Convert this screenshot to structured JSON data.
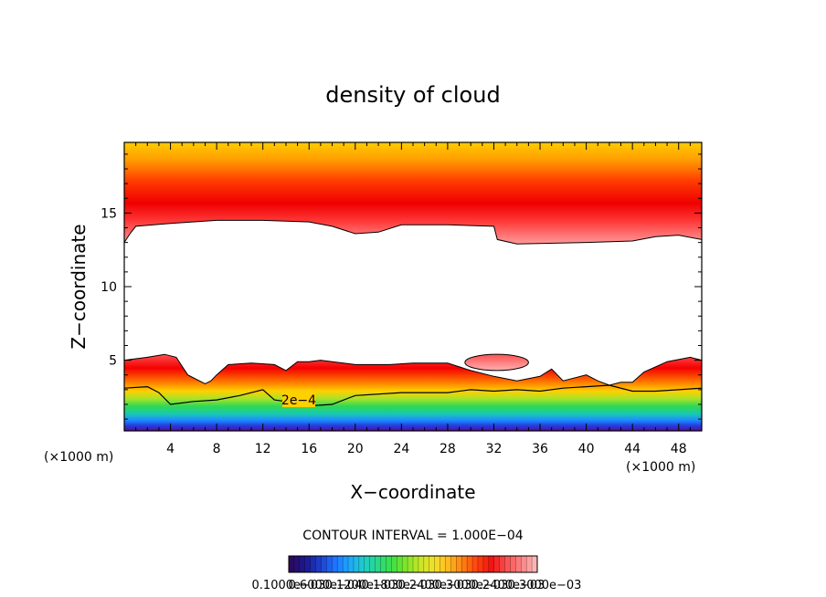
{
  "chart_data": {
    "type": "heatmap",
    "title": "density of cloud",
    "xlabel": "X−coordinate",
    "ylabel": "Z−coordinate",
    "x_unit_left": "(×1000 m)",
    "x_unit_right": "(×1000 m)",
    "xlim": [
      0,
      50
    ],
    "ylim": [
      0.2,
      19.8
    ],
    "x_ticks": [
      4,
      8,
      12,
      16,
      20,
      24,
      28,
      32,
      36,
      40,
      44,
      48
    ],
    "x_tick_labels": [
      "4",
      "8",
      "12",
      "16",
      "20",
      "24",
      "28",
      "32",
      "36",
      "40",
      "44",
      "48"
    ],
    "y_ticks": [
      5,
      10,
      15
    ],
    "y_tick_labels": [
      "5",
      "10",
      "15"
    ],
    "contour_interval_text": "CONTOUR INTERVAL = 1.000E−04",
    "contour_interval": 0.0001,
    "contour_label": "2e−4",
    "contour_label_position": [
      14,
      2.3
    ],
    "upper_cloud_base_profile": {
      "x": [
        0,
        0.5,
        1,
        4,
        8,
        12,
        16,
        18,
        20,
        22,
        24,
        28,
        32,
        32.3,
        34,
        40,
        44,
        46,
        48,
        50
      ],
      "z": [
        13.0,
        13.6,
        14.1,
        14.3,
        14.5,
        14.5,
        14.4,
        14.1,
        13.6,
        13.7,
        14.2,
        14.2,
        14.1,
        13.2,
        12.9,
        13.0,
        13.1,
        13.4,
        13.5,
        13.2
      ]
    },
    "lower_cloud_top_profile": {
      "x": [
        0,
        2,
        3.5,
        4.5,
        5,
        5.5,
        6,
        7,
        7.5,
        8,
        9,
        11,
        13,
        14,
        15,
        16,
        17,
        18,
        20,
        23,
        25,
        28,
        30,
        32,
        34,
        36,
        37,
        38,
        40,
        41,
        42,
        43,
        44,
        45,
        47,
        49,
        50
      ],
      "z": [
        5.0,
        5.2,
        5.4,
        5.2,
        4.6,
        4.0,
        3.8,
        3.4,
        3.6,
        4.0,
        4.7,
        4.8,
        4.7,
        4.3,
        4.9,
        4.9,
        5.0,
        4.9,
        4.7,
        4.7,
        4.8,
        4.8,
        4.3,
        3.9,
        3.6,
        3.9,
        4.4,
        3.6,
        4.0,
        3.6,
        3.3,
        3.5,
        3.5,
        4.2,
        4.9,
        5.2,
        5.0
      ]
    },
    "contour_2e-4_profile": {
      "x": [
        0,
        2,
        3,
        4,
        6,
        8,
        10,
        12,
        13,
        14,
        16,
        18,
        20,
        24,
        28,
        30,
        32,
        34,
        36,
        38,
        40,
        42,
        44,
        46,
        48,
        50
      ],
      "z": [
        3.1,
        3.2,
        2.8,
        2.0,
        2.2,
        2.3,
        2.6,
        3.0,
        2.3,
        2.2,
        1.9,
        2.0,
        2.6,
        2.8,
        2.8,
        3.0,
        2.9,
        3.0,
        2.9,
        3.1,
        3.2,
        3.3,
        2.9,
        2.9,
        3.0,
        3.1
      ]
    },
    "cloud_lens": {
      "x_range": [
        29.5,
        35
      ],
      "z_range": [
        4.3,
        5.4
      ]
    },
    "colorbar": {
      "range": [
        0.0001,
        0.001
      ],
      "colors": [
        "#2a0a5e",
        "#1c1890",
        "#1e3ec8",
        "#1e72ff",
        "#1ea4ff",
        "#1ecccc",
        "#2ad88c",
        "#3ce046",
        "#7ee62a",
        "#c8e628",
        "#f4e02a",
        "#ffb81e",
        "#ff7e14",
        "#ff420e",
        "#f21212",
        "#f85050",
        "#fa8080",
        "#fcb4b4"
      ],
      "labels": [
        "0.1000e−03",
        "0.6000e−04",
        "0.1200e−03",
        "0.1800e−03",
        "0.2400e−03",
        "0.3000e−03",
        "0.2400e−03",
        "0.3000e−03"
      ]
    }
  }
}
